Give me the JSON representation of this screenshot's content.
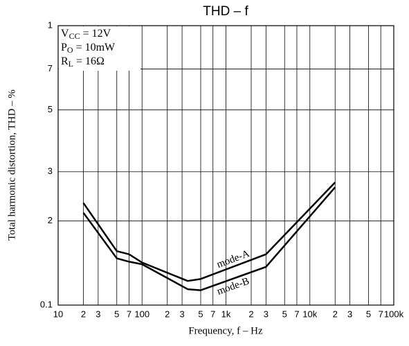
{
  "chart_data": {
    "type": "line",
    "title": "THD – f",
    "xlabel": "Frequency, f – Hz",
    "ylabel": "Total harmonic distortion, THD – %",
    "log_x": true,
    "log_y": true,
    "grid": true,
    "xlim": [
      10,
      100000
    ],
    "ylim": [
      0.1,
      1
    ],
    "xticks": [
      10,
      {
        "value": 20,
        "label": "2"
      },
      {
        "value": 30,
        "label": "3"
      },
      {
        "value": 50,
        "label": "5"
      },
      {
        "value": 70,
        "label": "7"
      },
      100,
      {
        "value": 200,
        "label": "2"
      },
      {
        "value": 300,
        "label": "3"
      },
      {
        "value": 500,
        "label": "5"
      },
      {
        "value": 700,
        "label": "7"
      },
      {
        "value": 1000,
        "label": "1k"
      },
      {
        "value": 2000,
        "label": "2"
      },
      {
        "value": 3000,
        "label": "3"
      },
      {
        "value": 5000,
        "label": "5"
      },
      {
        "value": 7000,
        "label": "7"
      },
      {
        "value": 10000,
        "label": "10k"
      },
      {
        "value": 20000,
        "label": "2"
      },
      {
        "value": 30000,
        "label": "3"
      },
      {
        "value": 50000,
        "label": "5"
      },
      {
        "value": 70000,
        "label": "7"
      },
      {
        "value": 100000,
        "label": "100k"
      }
    ],
    "yticks": [
      0.1,
      {
        "value": 0.2,
        "label": "2"
      },
      {
        "value": 0.3,
        "label": "3"
      },
      {
        "value": 0.5,
        "label": "5"
      },
      {
        "value": 0.7,
        "label": "7"
      },
      1
    ],
    "conditions": [
      {
        "main": "V",
        "sub": "CC",
        "rest": " = 12V"
      },
      {
        "main": "P",
        "sub": "O",
        "rest": " = 10mW"
      },
      {
        "main": "R",
        "sub": "L",
        "rest": " = 16Ω"
      }
    ],
    "x": [
      20,
      50,
      70,
      100,
      350,
      500,
      3000,
      20000
    ],
    "series": [
      {
        "name": "mode-A",
        "color": "#000000",
        "values": [
          0.232,
          0.156,
          0.152,
          0.142,
          0.122,
          0.124,
          0.152,
          0.275
        ]
      },
      {
        "name": "mode-B",
        "color": "#000000",
        "values": [
          0.214,
          0.147,
          0.143,
          0.14,
          0.114,
          0.113,
          0.137,
          0.264
        ]
      }
    ]
  }
}
